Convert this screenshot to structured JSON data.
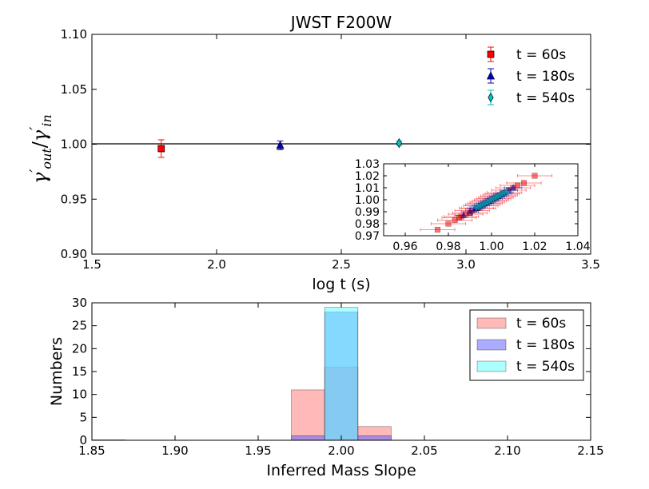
{
  "chart_data": [
    {
      "type": "scatter",
      "title": "JWST F200W",
      "xlabel": "log t (s)",
      "ylabel": {
        "base": "γ",
        "num_sub": "out",
        "den_sub": "in"
      },
      "xlim": [
        1.5,
        3.5
      ],
      "ylim": [
        0.9,
        1.1
      ],
      "xticks": [
        "1.5",
        "2.0",
        "2.5",
        "3.0",
        "3.5"
      ],
      "yticks": [
        "0.90",
        "0.95",
        "1.00",
        "1.05",
        "1.10"
      ],
      "reference_line_y": 1.0,
      "legend_position": "top-right",
      "series": [
        {
          "name": "t = 60s",
          "marker": "square",
          "color": "#ff0000",
          "x": 1.778,
          "y": 0.996,
          "yerr": 0.008
        },
        {
          "name": "t = 180s",
          "marker": "triangle",
          "color": "#0000cc",
          "x": 2.255,
          "y": 0.999,
          "yerr": 0.004
        },
        {
          "name": "t = 540s",
          "marker": "diamond",
          "color": "#00bfbf",
          "x": 2.732,
          "y": 1.001,
          "yerr": 0.002
        }
      ]
    },
    {
      "type": "scatter",
      "xlim": [
        0.95,
        1.04
      ],
      "ylim": [
        0.97,
        1.03
      ],
      "xticks": [
        "0.96",
        "0.98",
        "1.00",
        "1.02",
        "1.04"
      ],
      "yticks": [
        "0.97",
        "0.98",
        "0.99",
        "1.00",
        "1.01",
        "1.02",
        "1.03"
      ],
      "series": [
        {
          "name": "t = 60s",
          "color": "#ff0000",
          "x": [
            0.975,
            0.98,
            0.983,
            0.985,
            0.986,
            0.988,
            0.99,
            0.991,
            0.993,
            0.994,
            0.995,
            0.996,
            0.997,
            0.998,
            0.999,
            1.0,
            1.001,
            1.002,
            1.003,
            1.004,
            1.005,
            1.006,
            1.008,
            1.01,
            1.012,
            1.015,
            1.02
          ],
          "y": [
            0.975,
            0.98,
            0.983,
            0.985,
            0.986,
            0.988,
            0.989,
            0.991,
            0.993,
            0.993,
            0.995,
            0.996,
            0.997,
            0.998,
            0.999,
            1.0,
            1.001,
            1.002,
            1.003,
            1.004,
            1.005,
            1.006,
            1.008,
            1.01,
            1.012,
            1.014,
            1.02
          ],
          "xerr": 0.008
        },
        {
          "name": "t = 180s",
          "color": "#0000cc",
          "x": [
            0.987,
            0.99,
            0.992,
            0.993,
            0.994,
            0.995,
            0.996,
            0.997,
            0.998,
            0.999,
            1.0,
            1.001,
            1.002,
            1.003,
            1.004,
            1.005,
            1.006,
            1.008,
            1.01
          ],
          "y": [
            0.987,
            0.99,
            0.992,
            0.993,
            0.994,
            0.995,
            0.996,
            0.997,
            0.998,
            0.999,
            1.0,
            1.001,
            1.002,
            1.003,
            1.004,
            1.005,
            1.006,
            1.008,
            1.01
          ],
          "xerr": 0.004
        },
        {
          "name": "t = 540s",
          "color": "#00bfbf",
          "x": [
            0.993,
            0.994,
            0.995,
            0.996,
            0.997,
            0.998,
            0.999,
            1.0,
            1.001,
            1.002,
            1.003,
            1.004,
            1.005,
            1.006,
            1.007
          ],
          "y": [
            0.993,
            0.994,
            0.995,
            0.996,
            0.997,
            0.998,
            0.999,
            1.0,
            1.001,
            1.002,
            1.003,
            1.004,
            1.005,
            1.006,
            1.007
          ],
          "xerr": 0.002
        }
      ]
    },
    {
      "type": "bar",
      "xlabel": "Inferred Mass Slope",
      "ylabel": "Numbers",
      "xlim": [
        1.85,
        2.15
      ],
      "ylim": [
        0,
        30
      ],
      "xticks": [
        "1.85",
        "1.90",
        "1.95",
        "2.00",
        "2.05",
        "2.10",
        "2.15"
      ],
      "yticks": [
        "0",
        "5",
        "10",
        "15",
        "20",
        "25",
        "30"
      ],
      "legend_position": "top-right",
      "series": [
        {
          "name": "t = 60s",
          "color": "#ff7f7f",
          "bins": [
            [
              1.97,
              1.99,
              11
            ],
            [
              1.99,
              2.01,
              16
            ],
            [
              2.01,
              2.03,
              3
            ]
          ]
        },
        {
          "name": "t = 180s",
          "color": "#6666ff",
          "bins": [
            [
              1.85,
              1.87,
              0.1
            ],
            [
              1.97,
              1.99,
              1
            ],
            [
              1.99,
              2.01,
              28
            ],
            [
              2.01,
              2.03,
              1
            ]
          ]
        },
        {
          "name": "t = 540s",
          "color": "#66ffff",
          "bins": [
            [
              1.99,
              2.01,
              29
            ]
          ]
        }
      ]
    }
  ]
}
